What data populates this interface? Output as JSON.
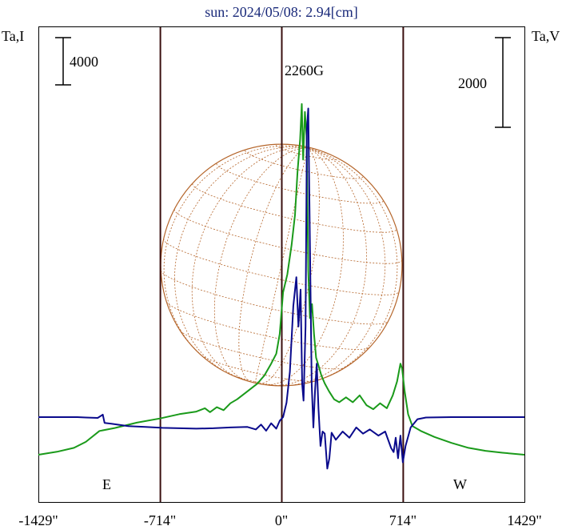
{
  "title": "sun: 2024/05/08: 2.94[cm]",
  "left_axis_label": "Ta,I",
  "right_axis_label": "Ta,V",
  "scale_left": "4000",
  "scale_right": "2000",
  "peak_label": "2260G",
  "east_label": "E",
  "west_label": "W",
  "colors": {
    "stokes_I": "#1a9a1a",
    "stokes_V": "#0a0a8c",
    "disk": "#b5652a",
    "limb": "#3a0f0f"
  },
  "chart_data": {
    "type": "line",
    "x_unit": "arcsec",
    "xlim": [
      -1429,
      1429
    ],
    "x_ticks": [
      -1429,
      -714,
      0,
      714,
      1429
    ],
    "x_tick_labels": [
      "-1429\"",
      "-714\"",
      "0\"",
      "714\"",
      "1429\""
    ],
    "vertical_lines": [
      -1429,
      -714,
      0,
      714,
      1429
    ],
    "limb_east": -714,
    "limb_west": 714,
    "series": [
      {
        "axis": "Ta,I",
        "points": [
          [
            -1429,
            -1900
          ],
          [
            -1320,
            -1750
          ],
          [
            -1220,
            -1550
          ],
          [
            -1150,
            -1250
          ],
          [
            -1070,
            -700
          ],
          [
            -980,
            -550
          ],
          [
            -850,
            -280
          ],
          [
            -714,
            -70
          ],
          [
            -600,
            150
          ],
          [
            -500,
            280
          ],
          [
            -450,
            450
          ],
          [
            -420,
            250
          ],
          [
            -380,
            500
          ],
          [
            -340,
            350
          ],
          [
            -300,
            700
          ],
          [
            -260,
            900
          ],
          [
            -200,
            1300
          ],
          [
            -140,
            1700
          ],
          [
            -100,
            2100
          ],
          [
            -60,
            2700
          ],
          [
            -30,
            3200
          ],
          [
            -10,
            4200
          ],
          [
            10,
            6300
          ],
          [
            35,
            7200
          ],
          [
            60,
            8700
          ],
          [
            80,
            10200
          ],
          [
            95,
            12400
          ],
          [
            110,
            14000
          ],
          [
            120,
            15800
          ],
          [
            128,
            13000
          ],
          [
            138,
            15400
          ],
          [
            148,
            14200
          ],
          [
            158,
            7400
          ],
          [
            168,
            5000
          ],
          [
            180,
            5700
          ],
          [
            192,
            4200
          ],
          [
            204,
            3000
          ],
          [
            218,
            2600
          ],
          [
            235,
            2100
          ],
          [
            255,
            1700
          ],
          [
            280,
            1300
          ],
          [
            310,
            900
          ],
          [
            340,
            750
          ],
          [
            380,
            1000
          ],
          [
            420,
            750
          ],
          [
            460,
            1100
          ],
          [
            500,
            600
          ],
          [
            540,
            400
          ],
          [
            580,
            700
          ],
          [
            620,
            450
          ],
          [
            655,
            1100
          ],
          [
            680,
            1800
          ],
          [
            700,
            2700
          ],
          [
            710,
            2450
          ],
          [
            725,
            1300
          ],
          [
            745,
            150
          ],
          [
            770,
            -450
          ],
          [
            820,
            -700
          ],
          [
            900,
            -1000
          ],
          [
            1000,
            -1300
          ],
          [
            1100,
            -1550
          ],
          [
            1200,
            -1700
          ],
          [
            1300,
            -1800
          ],
          [
            1429,
            -1900
          ]
        ]
      },
      {
        "axis": "Ta,V",
        "points": [
          [
            -1429,
            0
          ],
          [
            -1200,
            0
          ],
          [
            -1150,
            -10
          ],
          [
            -1080,
            -20
          ],
          [
            -1050,
            60
          ],
          [
            -1040,
            -140
          ],
          [
            -1000,
            -160
          ],
          [
            -900,
            -220
          ],
          [
            -800,
            -240
          ],
          [
            -700,
            -260
          ],
          [
            -600,
            -270
          ],
          [
            -500,
            -280
          ],
          [
            -400,
            -270
          ],
          [
            -300,
            -250
          ],
          [
            -200,
            -240
          ],
          [
            -150,
            -300
          ],
          [
            -120,
            -180
          ],
          [
            -90,
            -330
          ],
          [
            -60,
            -150
          ],
          [
            -30,
            -280
          ],
          [
            -10,
            -90
          ],
          [
            10,
            0
          ],
          [
            30,
            350
          ],
          [
            50,
            1100
          ],
          [
            70,
            2700
          ],
          [
            88,
            3400
          ],
          [
            100,
            2200
          ],
          [
            113,
            3100
          ],
          [
            122,
            800
          ],
          [
            130,
            400
          ],
          [
            142,
            2200
          ],
          [
            150,
            7000
          ],
          [
            158,
            7500
          ],
          [
            168,
            4200
          ],
          [
            178,
            800
          ],
          [
            188,
            -250
          ],
          [
            198,
            650
          ],
          [
            208,
            1300
          ],
          [
            218,
            200
          ],
          [
            230,
            -700
          ],
          [
            242,
            -350
          ],
          [
            255,
            -400
          ],
          [
            270,
            -1250
          ],
          [
            282,
            -1000
          ],
          [
            295,
            -380
          ],
          [
            320,
            -550
          ],
          [
            360,
            -350
          ],
          [
            400,
            -500
          ],
          [
            440,
            -250
          ],
          [
            480,
            -400
          ],
          [
            520,
            -300
          ],
          [
            570,
            -450
          ],
          [
            610,
            -350
          ],
          [
            645,
            -750
          ],
          [
            660,
            -850
          ],
          [
            672,
            -500
          ],
          [
            686,
            -1000
          ],
          [
            700,
            -450
          ],
          [
            714,
            -1100
          ],
          [
            730,
            -700
          ],
          [
            760,
            -250
          ],
          [
            800,
            -50
          ],
          [
            850,
            -10
          ],
          [
            1000,
            0
          ],
          [
            1200,
            0
          ],
          [
            1429,
            0
          ]
        ]
      }
    ]
  }
}
